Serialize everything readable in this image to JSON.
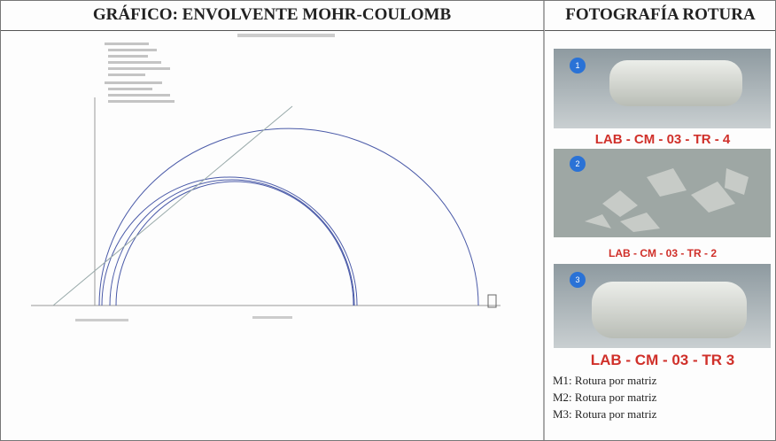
{
  "header": {
    "left_title": "GRÁFICO: ENVOLVENTE MOHR-COULOMB",
    "right_title": "FOTOGRAFÍA ROTURA"
  },
  "photos": [
    {
      "badge": "1",
      "label": "LAB - CM - 03 - TR - 4"
    },
    {
      "badge": "2",
      "label": "LAB - CM - 03 - TR - 2"
    },
    {
      "badge": "3",
      "label": "LAB - CM - 03 - TR 3"
    }
  ],
  "notes": [
    "M1: Rotura por matriz",
    "M2: Rotura por matriz",
    "M3: Rotura por matriz"
  ]
}
